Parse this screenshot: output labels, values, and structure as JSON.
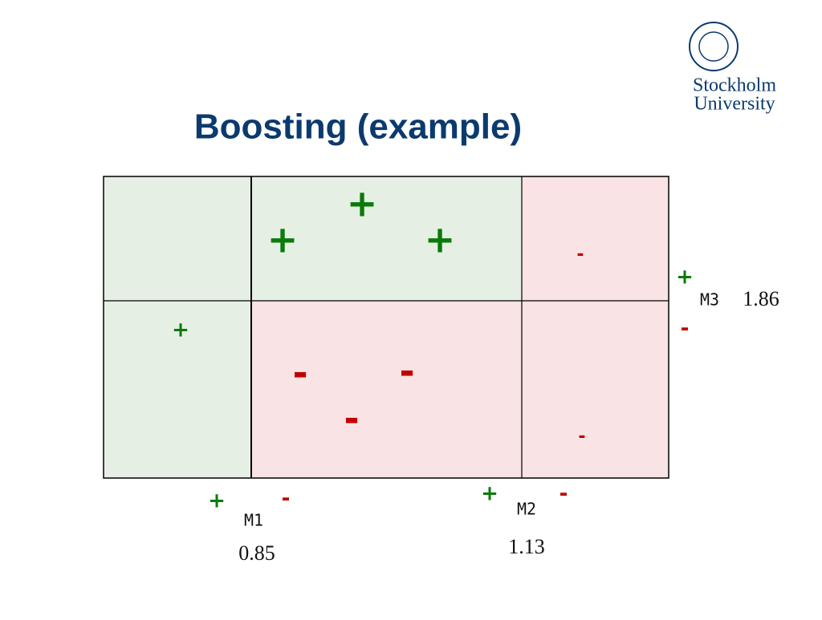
{
  "header": {
    "title": "Boosting (example)",
    "logo": [
      "Stockholm",
      "University"
    ]
  },
  "points": [
    "+",
    "+",
    "+",
    "-",
    "+",
    "-",
    "-",
    "-",
    "-"
  ],
  "classifiers": [
    {
      "name": "M1",
      "weight": 0.85,
      "signs": [
        "+",
        "-"
      ]
    },
    {
      "name": "M2",
      "weight": 1.13,
      "signs": [
        "+",
        "-"
      ]
    },
    {
      "name": "M3",
      "weight": 1.86,
      "signs": [
        "+",
        "-"
      ]
    }
  ]
}
